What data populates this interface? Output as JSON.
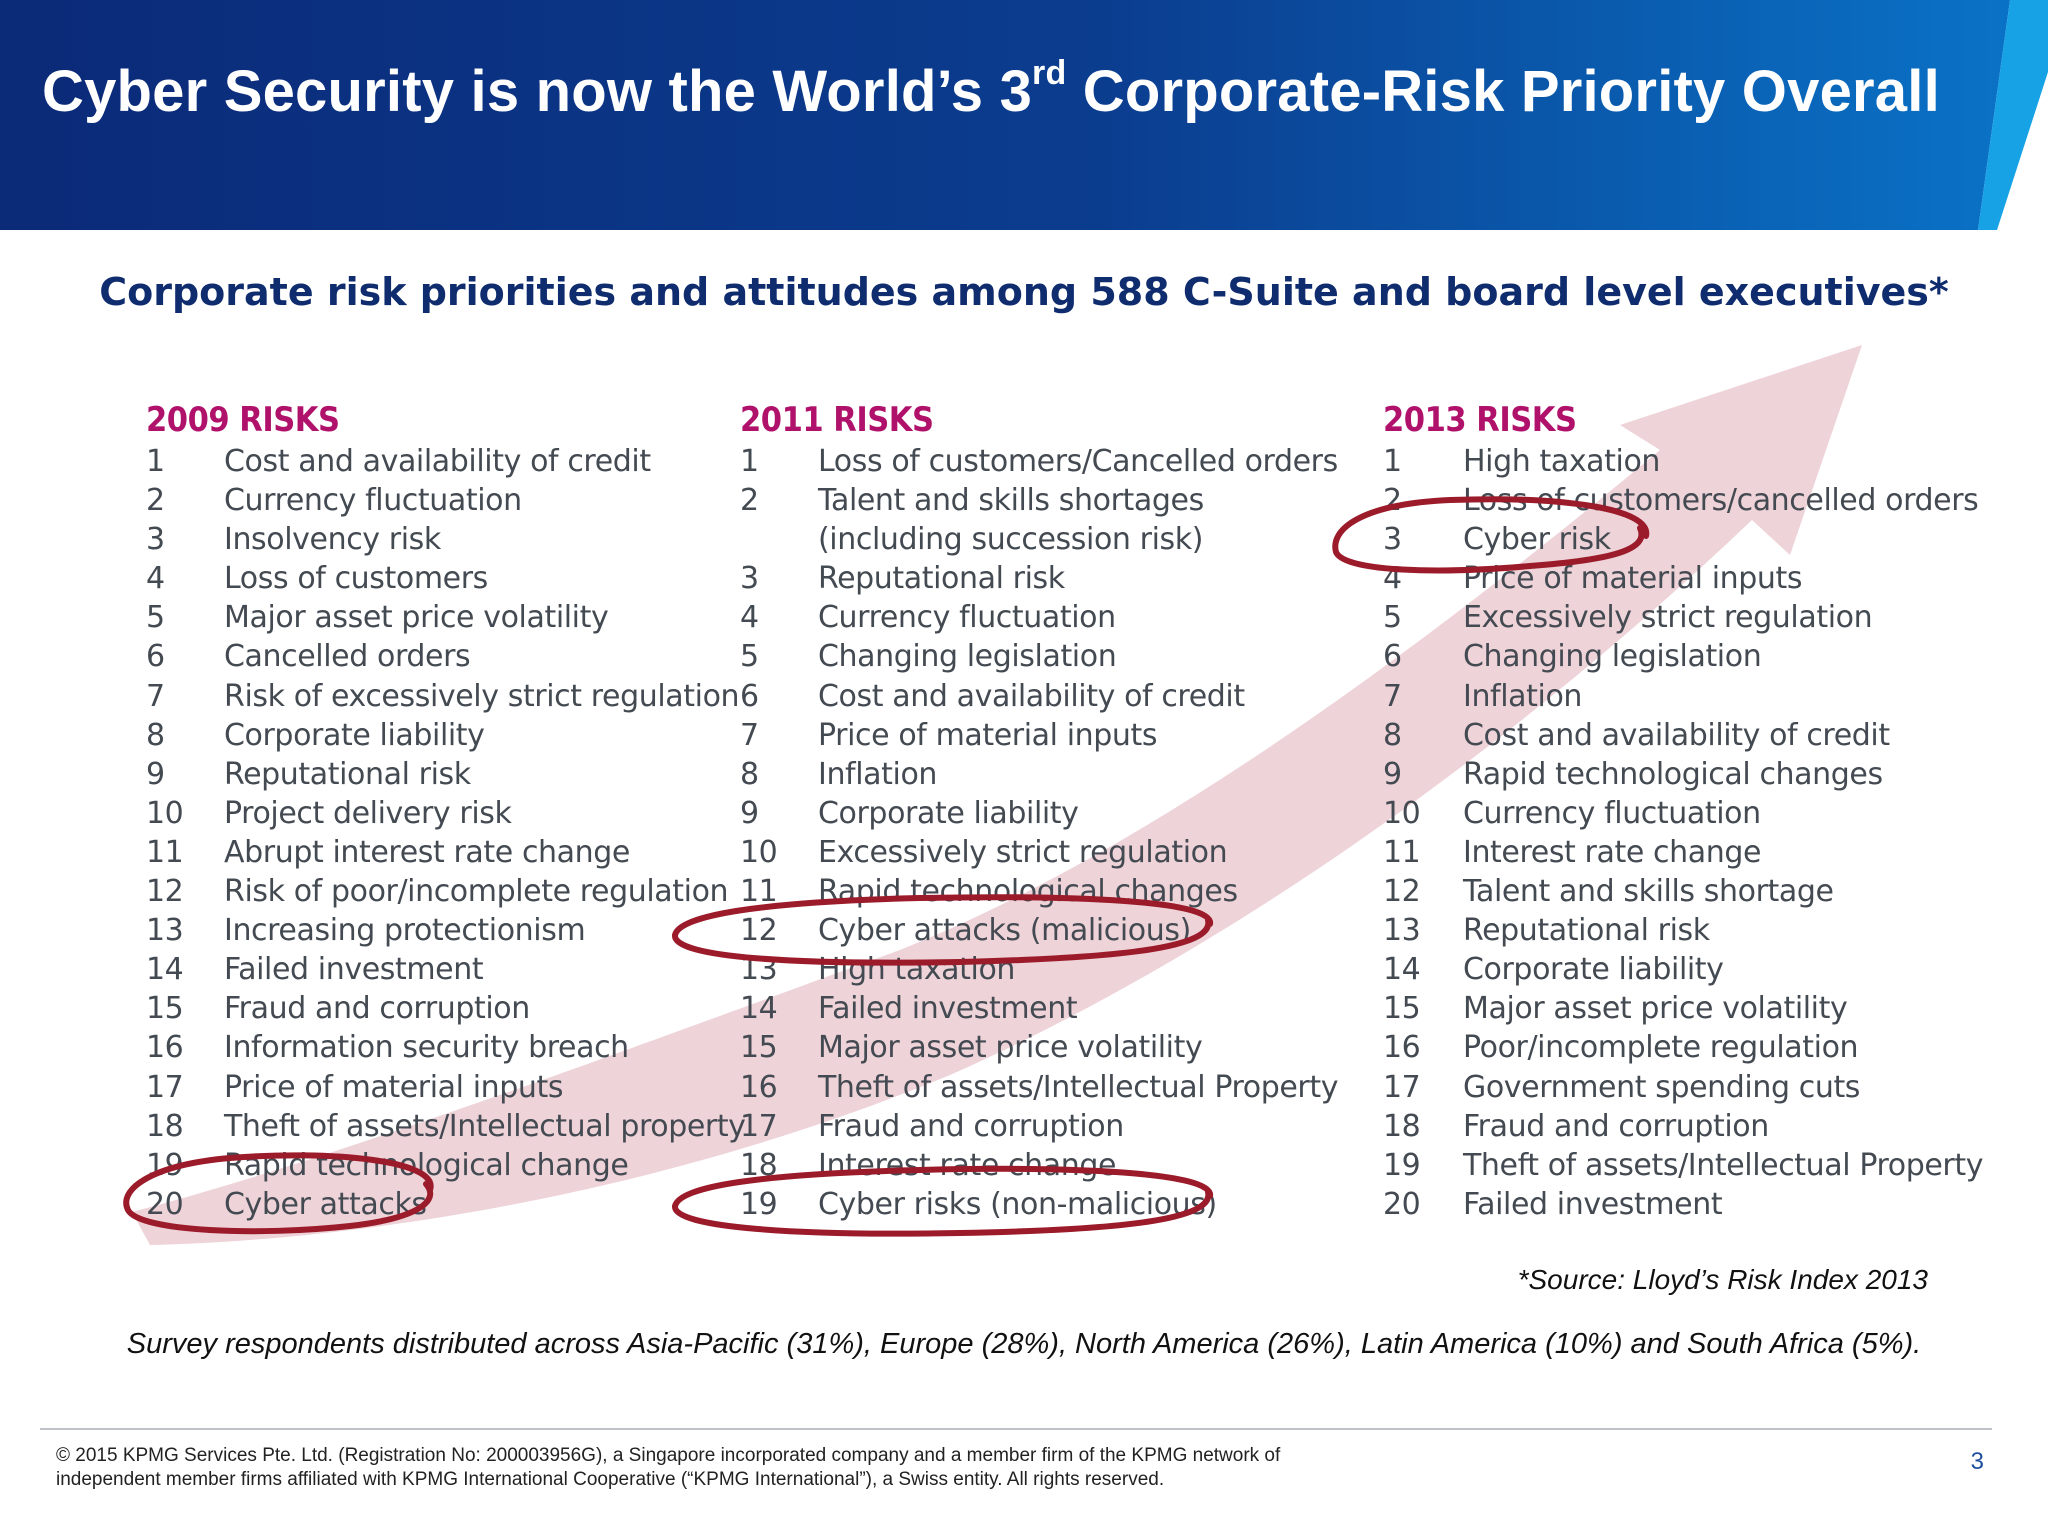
{
  "header": {
    "title_prefix": "Cyber Security is now the World’s 3",
    "title_sup": "rd",
    "title_suffix": " Corporate-Risk Priority Overall"
  },
  "subtitle": "Corporate risk priorities and attitudes among 588 C-Suite and board level executives*",
  "columns": [
    {
      "heading": "2009 RISKS",
      "rows": [
        {
          "rank": "1",
          "label": "Cost and availability of credit"
        },
        {
          "rank": "2",
          "label": "Currency fluctuation"
        },
        {
          "rank": "3",
          "label": "Insolvency risk"
        },
        {
          "rank": "4",
          "label": "Loss of customers"
        },
        {
          "rank": "5",
          "label": "Major asset price volatility"
        },
        {
          "rank": "6",
          "label": "Cancelled orders"
        },
        {
          "rank": "7",
          "label": "Risk of excessively strict regulation"
        },
        {
          "rank": "8",
          "label": "Corporate liability"
        },
        {
          "rank": "9",
          "label": "Reputational risk"
        },
        {
          "rank": "10",
          "label": "Project delivery risk"
        },
        {
          "rank": "11",
          "label": "Abrupt interest rate change"
        },
        {
          "rank": "12",
          "label": "Risk of poor/incomplete regulation"
        },
        {
          "rank": "13",
          "label": "Increasing protectionism"
        },
        {
          "rank": "14",
          "label": "Failed investment"
        },
        {
          "rank": "15",
          "label": "Fraud and corruption"
        },
        {
          "rank": "16",
          "label": "Information security breach"
        },
        {
          "rank": "17",
          "label": "Price of material inputs"
        },
        {
          "rank": "18",
          "label": "Theft of assets/Intellectual property"
        },
        {
          "rank": "19",
          "label": "Rapid technological change"
        },
        {
          "rank": "20",
          "label": "Cyber attacks"
        }
      ]
    },
    {
      "heading": "2011 RISKS",
      "rows": [
        {
          "rank": "1",
          "label": "Loss of customers/Cancelled orders"
        },
        {
          "rank": "2",
          "label": "Talent and skills shortages"
        },
        {
          "rank": "",
          "label": "(including succession risk)"
        },
        {
          "rank": "3",
          "label": "Reputational risk"
        },
        {
          "rank": "4",
          "label": "Currency fluctuation"
        },
        {
          "rank": "5",
          "label": "Changing legislation"
        },
        {
          "rank": "6",
          "label": "Cost and availability of credit"
        },
        {
          "rank": "7",
          "label": "Price of material inputs"
        },
        {
          "rank": "8",
          "label": "Inflation"
        },
        {
          "rank": "9",
          "label": "Corporate liability"
        },
        {
          "rank": "10",
          "label": "Excessively strict regulation"
        },
        {
          "rank": "11",
          "label": "Rapid technological changes"
        },
        {
          "rank": "12",
          "label": "Cyber attacks (malicious)"
        },
        {
          "rank": "13",
          "label": "High taxation"
        },
        {
          "rank": "14",
          "label": "Failed investment"
        },
        {
          "rank": "15",
          "label": "Major asset price volatility"
        },
        {
          "rank": "16",
          "label": "Theft of assets/Intellectual Property"
        },
        {
          "rank": "17",
          "label": "Fraud and corruption"
        },
        {
          "rank": "18",
          "label": "Interest rate change"
        },
        {
          "rank": "19",
          "label": "Cyber risks (non-malicious)"
        }
      ]
    },
    {
      "heading": "2013 RISKS",
      "rows": [
        {
          "rank": "1",
          "label": "High taxation"
        },
        {
          "rank": "2",
          "label": "Loss of customers/cancelled orders"
        },
        {
          "rank": "3",
          "label": "Cyber risk"
        },
        {
          "rank": "4",
          "label": "Price of material inputs"
        },
        {
          "rank": "5",
          "label": "Excessively strict regulation"
        },
        {
          "rank": "6",
          "label": "Changing legislation"
        },
        {
          "rank": "7",
          "label": "Inflation"
        },
        {
          "rank": "8",
          "label": "Cost and availability of credit"
        },
        {
          "rank": "9",
          "label": "Rapid technological changes"
        },
        {
          "rank": "10",
          "label": "Currency fluctuation"
        },
        {
          "rank": "11",
          "label": "Interest rate change"
        },
        {
          "rank": "12",
          "label": "Talent and skills shortage"
        },
        {
          "rank": "13",
          "label": "Reputational risk"
        },
        {
          "rank": "14",
          "label": "Corporate liability"
        },
        {
          "rank": "15",
          "label": "Major asset price volatility"
        },
        {
          "rank": "16",
          "label": "Poor/incomplete regulation"
        },
        {
          "rank": "17",
          "label": "Government spending cuts"
        },
        {
          "rank": "18",
          "label": "Fraud and corruption"
        },
        {
          "rank": "19",
          "label": "Theft of assets/Intellectual Property"
        },
        {
          "rank": "20",
          "label": "Failed investment"
        }
      ]
    }
  ],
  "source_note": "*Source: Lloyd’s Risk Index 2013",
  "survey_note": "Survey respondents distributed across Asia-Pacific (31%), Europe (28%), North America (26%), Latin America (10%) and South Africa (5%).",
  "footer": {
    "copyright_line1": "© 2015 KPMG Services Pte. Ltd. (Registration No: 200003956G), a Singapore incorporated company and a member firm of the KPMG network of",
    "copyright_line2": "independent member firms affiliated with KPMG International Cooperative (“KPMG International”), a Swiss entity. All rights reserved.",
    "page_number": "3"
  },
  "colors": {
    "banner_dark": "#0b2a78",
    "banner_light": "#0a6fc4",
    "heading_magenta": "#b0126b",
    "subtitle_navy": "#0f2c6e",
    "circle_red": "#9c1b2a",
    "arrow_pink": "#e7c1c8"
  }
}
